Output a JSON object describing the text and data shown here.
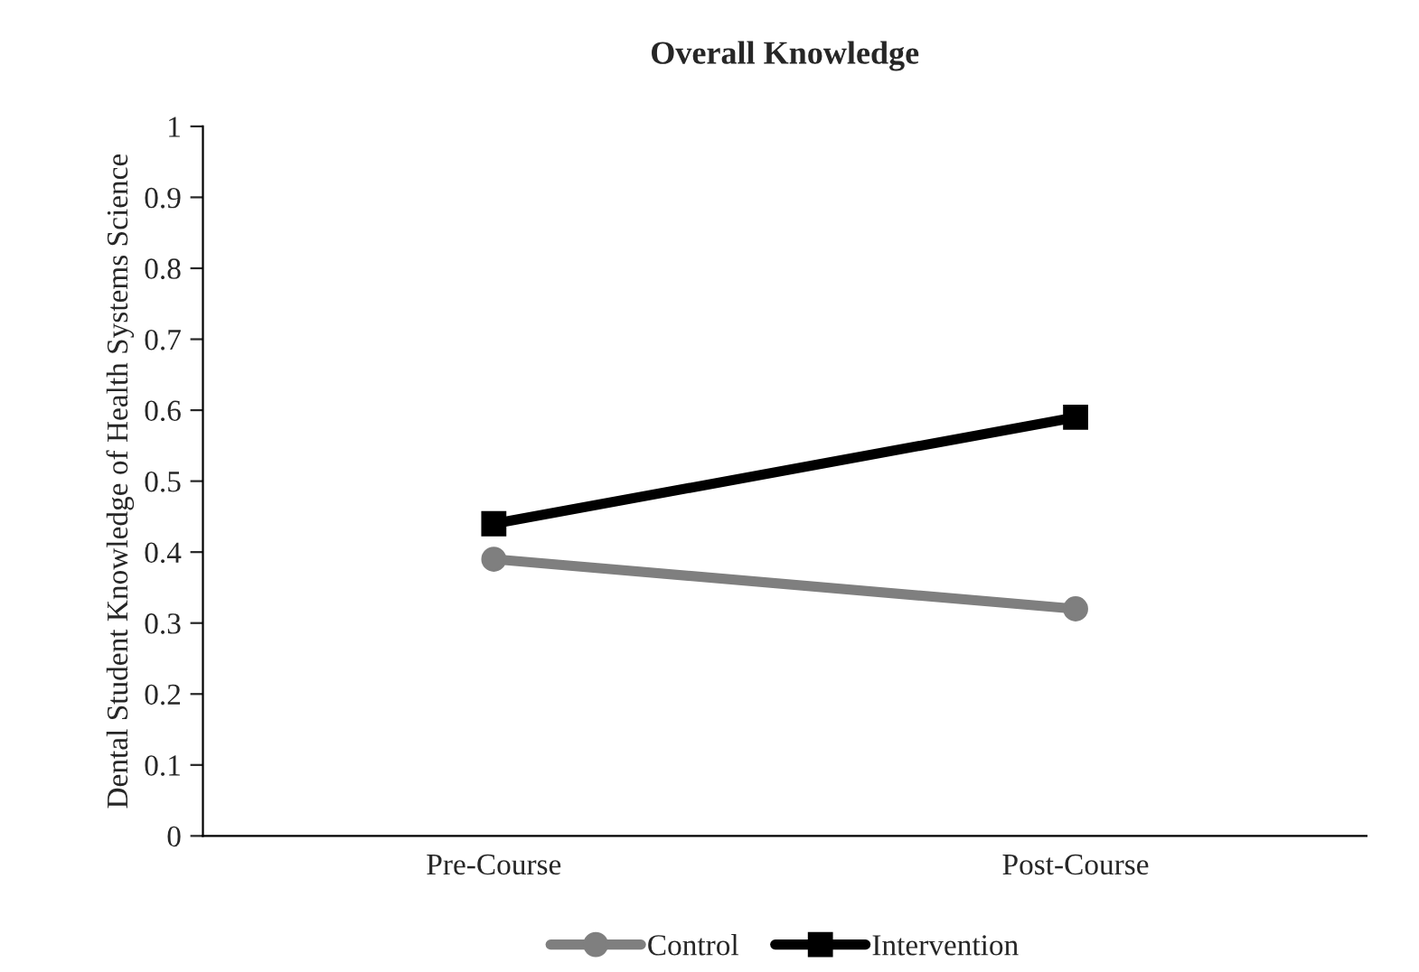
{
  "chart_data": {
    "type": "line",
    "title": "Overall Knowledge",
    "ylabel": "Dental Student Knowledge of Health Systems Science",
    "categories": [
      "Pre-Course",
      "Post-Course"
    ],
    "series": [
      {
        "name": "Control",
        "color": "#7f7f7f",
        "values": [
          0.39,
          0.32
        ],
        "marker": "circle"
      },
      {
        "name": "Intervention",
        "color": "#000000",
        "values": [
          0.44,
          0.59
        ],
        "marker": "square"
      }
    ],
    "ylim": [
      0,
      1
    ],
    "yticks": [
      0,
      0.1,
      0.2,
      0.3,
      0.4,
      0.5,
      0.6,
      0.7,
      0.8,
      0.9,
      1
    ],
    "grid": false,
    "legend": "bottom",
    "line_style": "solid"
  }
}
